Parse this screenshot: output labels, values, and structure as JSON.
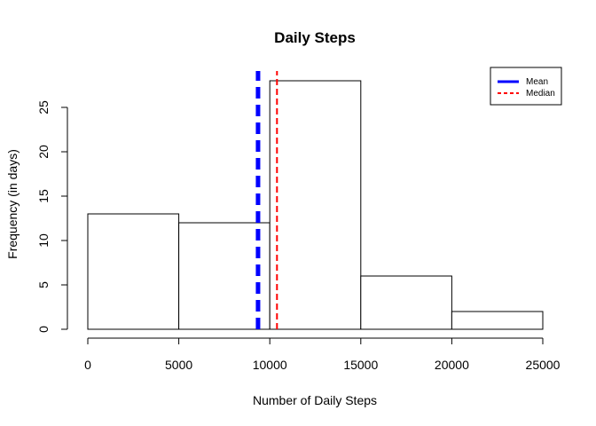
{
  "chart_data": {
    "type": "bar",
    "title": "Daily Steps",
    "xlabel": "Number of Daily Steps",
    "ylabel": "Frequency (in days)",
    "bins": [
      {
        "start": 0,
        "end": 5000,
        "count": 13
      },
      {
        "start": 5000,
        "end": 10000,
        "count": 12
      },
      {
        "start": 10000,
        "end": 15000,
        "count": 28
      },
      {
        "start": 15000,
        "end": 20000,
        "count": 6
      },
      {
        "start": 20000,
        "end": 25000,
        "count": 2
      }
    ],
    "xlim": [
      0,
      25000
    ],
    "ylim": [
      0,
      28
    ],
    "x_ticks": [
      0,
      5000,
      10000,
      15000,
      20000,
      25000
    ],
    "y_ticks": [
      0,
      5,
      10,
      15,
      20,
      25
    ],
    "reference_lines": [
      {
        "name": "Mean",
        "value": 9354,
        "color": "#0000ff",
        "style": "dashed-thick"
      },
      {
        "name": "Median",
        "value": 10395,
        "color": "#ff0000",
        "style": "dashed"
      }
    ],
    "legend": {
      "placement": "top-right",
      "entries": [
        "Mean",
        "Median"
      ]
    },
    "grid": false
  }
}
